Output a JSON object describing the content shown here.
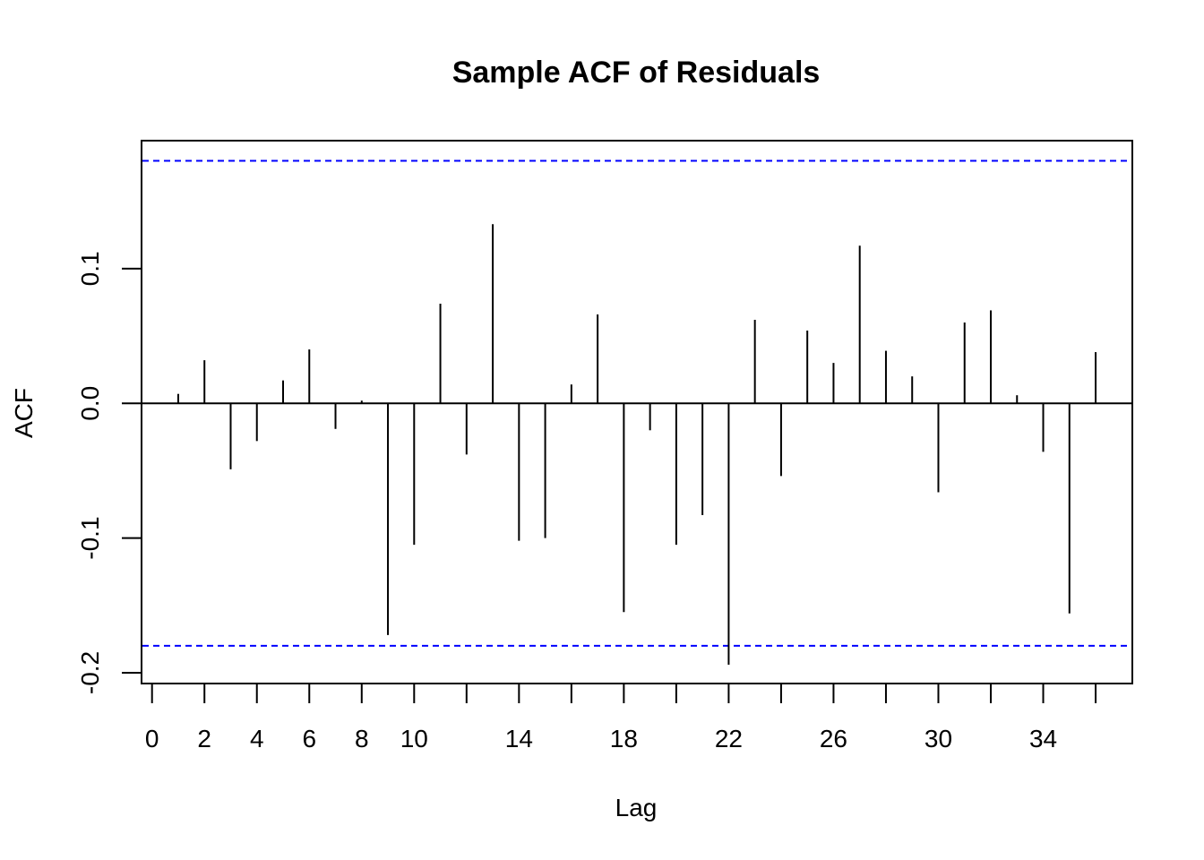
{
  "chart_data": {
    "type": "bar",
    "title": "Sample ACF of Residuals",
    "xlabel": "Lag",
    "ylabel": "ACF",
    "xlim": [
      -0.4,
      37.4
    ],
    "ylim": [
      -0.208,
      0.195
    ],
    "x_ticks": [
      0,
      2,
      4,
      6,
      8,
      10,
      14,
      18,
      22,
      26,
      30,
      34
    ],
    "x_tick_labels": [
      "0",
      "2",
      "4",
      "6",
      "8",
      "10",
      "14",
      "18",
      "22",
      "26",
      "30",
      "34"
    ],
    "x_tick_marks": [
      0,
      2,
      4,
      6,
      8,
      10,
      12,
      14,
      16,
      18,
      20,
      22,
      24,
      26,
      28,
      30,
      32,
      34,
      36
    ],
    "y_ticks": [
      -0.2,
      -0.1,
      0.0,
      0.1
    ],
    "y_tick_labels": [
      "-0.2",
      "-0.1",
      "0.0",
      "0.1"
    ],
    "confidence_bound": 0.18,
    "confidence_color": "#0000ff",
    "bar_color": "#000000",
    "lags": [
      1,
      2,
      3,
      4,
      5,
      6,
      7,
      8,
      9,
      10,
      11,
      12,
      13,
      14,
      15,
      16,
      17,
      18,
      19,
      20,
      21,
      22,
      23,
      24,
      25,
      26,
      27,
      28,
      29,
      30,
      31,
      32,
      33,
      34,
      35,
      36
    ],
    "values": [
      0.007,
      0.032,
      -0.049,
      -0.028,
      0.017,
      0.04,
      -0.019,
      0.002,
      -0.172,
      -0.105,
      0.074,
      -0.038,
      0.133,
      -0.102,
      -0.1,
      0.014,
      0.066,
      -0.155,
      -0.02,
      -0.105,
      -0.083,
      -0.194,
      0.062,
      -0.054,
      0.054,
      0.03,
      0.117,
      0.039,
      0.02,
      -0.066,
      0.06,
      0.069,
      0.006,
      -0.036,
      -0.156,
      0.038
    ]
  }
}
